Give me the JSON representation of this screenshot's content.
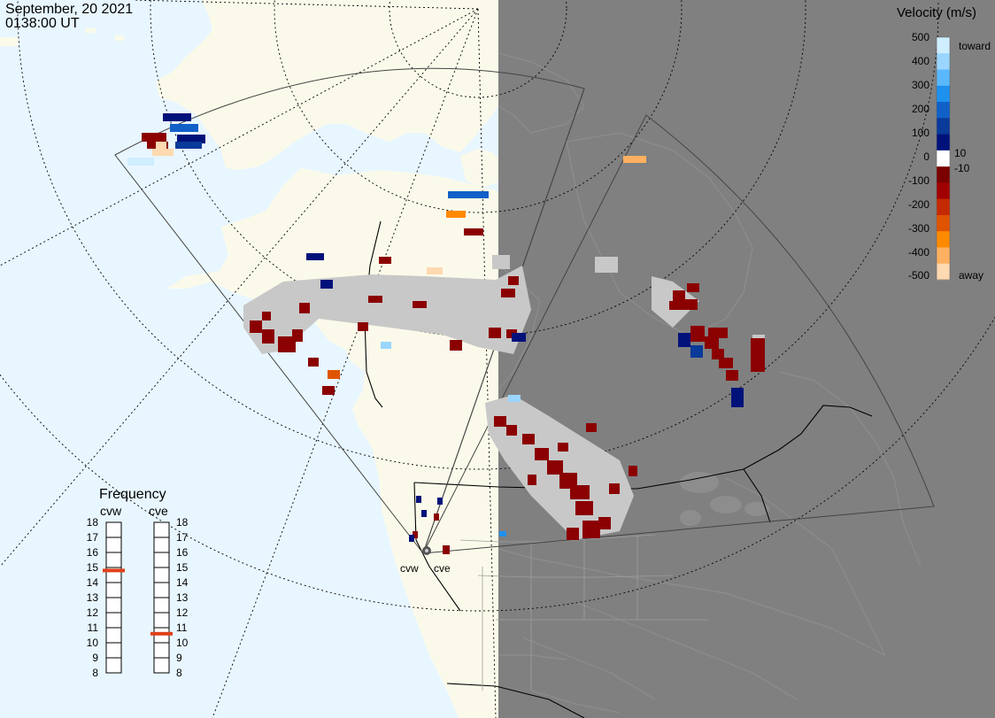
{
  "timestamp": {
    "date": "September, 20 2021",
    "time": "0138:00 UT"
  },
  "colors": {
    "ocean": "#e8f6ff",
    "land": "#fbfaea",
    "night": "#808080",
    "ground_scatter": "#c8c8c8",
    "selected_frequency": "#e0401a"
  },
  "radars": [
    {
      "name": "cvw",
      "frequency_mhz": 14.8
    },
    {
      "name": "cve",
      "frequency_mhz": 10.6
    }
  ],
  "velocity_scale": {
    "title": "Velocity (m/s)",
    "ticks": [
      "500",
      "400",
      "300",
      "200",
      "100",
      "10",
      "0",
      "-10",
      "-100",
      "-200",
      "-300",
      "-400",
      "-500"
    ],
    "toward_label": "toward",
    "away_label": "away",
    "colors_top_to_bottom": [
      "#cfeeff",
      "#9ad6ff",
      "#5ab8ff",
      "#1e90ee",
      "#1060c8",
      "#0a3a9a",
      "#00127a",
      "#ffffff",
      "#7a0000",
      "#a00000",
      "#c42a00",
      "#e05400",
      "#ff8a00",
      "#ffb060",
      "#ffd9b0"
    ]
  },
  "frequency_panel": {
    "title": "Frequency",
    "columns": [
      "cvw",
      "cve"
    ],
    "left_ticks": [
      "18",
      "17",
      "16",
      "15",
      "14",
      "13",
      "12",
      "11",
      "10",
      "9",
      "8"
    ],
    "right_ticks": [
      "18",
      "17",
      "16",
      "15",
      "14",
      "13",
      "12",
      "11",
      "10",
      "9",
      "8"
    ]
  }
}
